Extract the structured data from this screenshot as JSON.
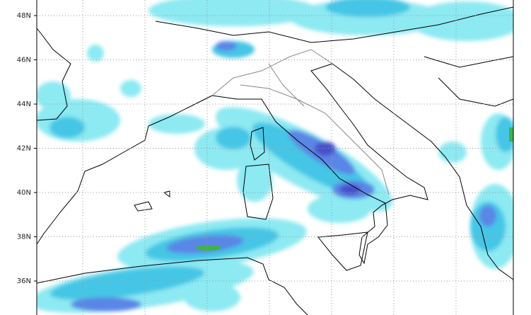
{
  "map": {
    "lat_labels": [
      "48N",
      "46N",
      "44N",
      "42N",
      "40N",
      "38N",
      "36N"
    ]
  }
}
